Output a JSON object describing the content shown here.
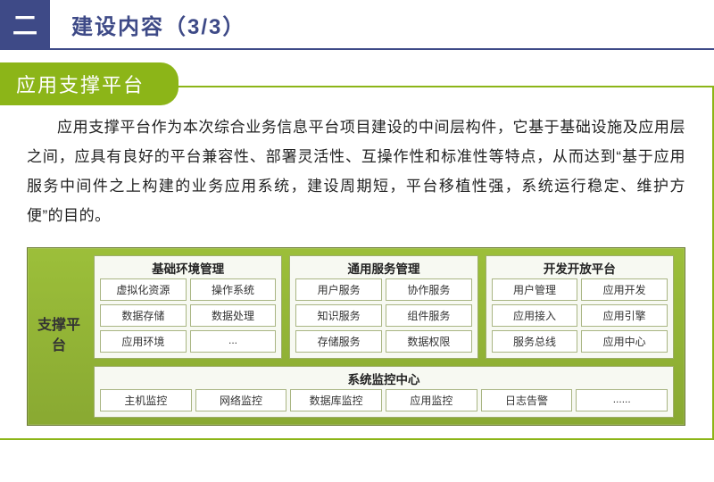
{
  "header": {
    "badge": "二",
    "title": "建设内容（3/3）"
  },
  "section": {
    "title": "应用支撑平台",
    "body": "应用支撑平台作为本次综合业务信息平台项目建设的中间层构件，它基于基础设施及应用层之间，应具有良好的平台兼容性、部署灵活性、互操作性和标准性等特点，从而达到“基于应用服务中间件之上构建的业务应用系统，建设周期短，平台移植性强，系统运行稳定、维护方便”的目的。"
  },
  "diagram": {
    "left_label": "支撑平台",
    "colors": {
      "accent_green": "#8cb518",
      "gradient_top": "#9cbf3a",
      "gradient_bottom": "#89a932",
      "panel_bg": "#f7f9f2",
      "panel_border": "#9eae6a",
      "cell_border": "#a9b583",
      "header_navy": "#3e4a87"
    },
    "top_panels": [
      {
        "title": "基础环境管理",
        "cells": [
          "虚拟化资源",
          "操作系统",
          "数据存储",
          "数据处理",
          "应用环境",
          "..."
        ]
      },
      {
        "title": "通用服务管理",
        "cells": [
          "用户服务",
          "协作服务",
          "知识服务",
          "组件服务",
          "存储服务",
          "数据权限"
        ]
      },
      {
        "title": "开发开放平台",
        "cells": [
          "用户管理",
          "应用开发",
          "应用接入",
          "应用引擎",
          "服务总线",
          "应用中心"
        ]
      }
    ],
    "bottom_panel": {
      "title": "系统监控中心",
      "cells": [
        "主机监控",
        "网络监控",
        "数据库监控",
        "应用监控",
        "日志告警",
        "......"
      ]
    }
  }
}
